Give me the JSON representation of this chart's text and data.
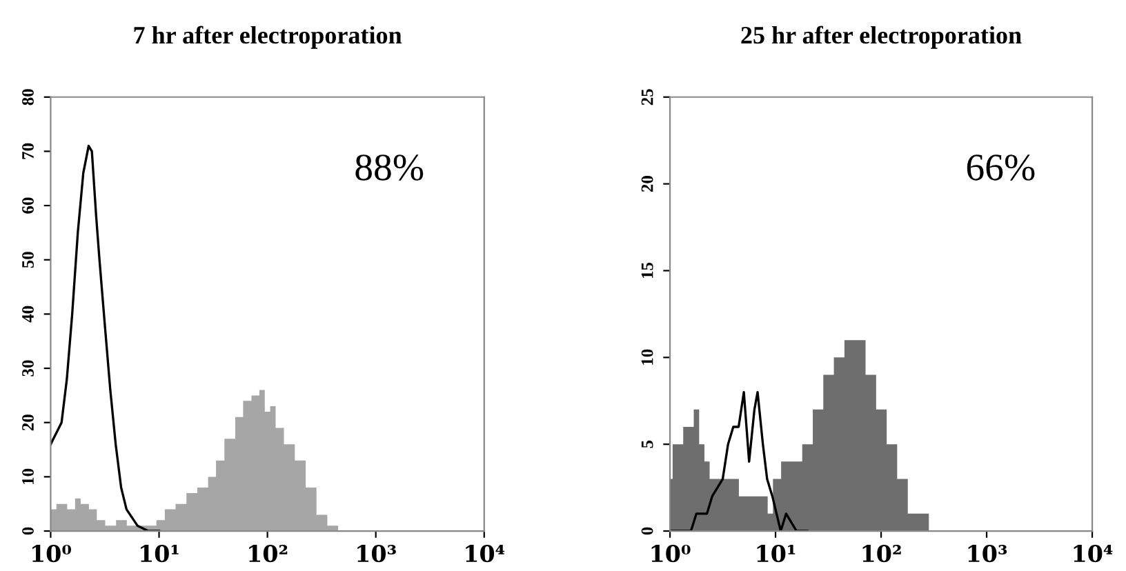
{
  "chart_data": [
    {
      "type": "area",
      "title": "7 hr after electroporation",
      "log": "x",
      "xlim": [
        1,
        10000
      ],
      "xticks": [
        {
          "value": 1,
          "label": "10⁰"
        },
        {
          "value": 10,
          "label": "10¹"
        },
        {
          "value": 100,
          "label": "10²"
        },
        {
          "value": 1000,
          "label": "10³"
        },
        {
          "value": 10000,
          "label": "10⁴"
        }
      ],
      "ylim": [
        0,
        80
      ],
      "yticks": [
        0,
        10,
        20,
        30,
        40,
        50,
        60,
        70,
        80
      ],
      "grid": false,
      "legend": false,
      "annotations": [
        "88%"
      ],
      "series": [
        {
          "color": "#a6a6a6",
          "x": [
            1,
            1.26,
            1.58,
            1.78,
            2.0,
            2.51,
            2.82,
            3.55,
            4.47,
            5.62,
            7.08,
            8.91,
            10,
            12.6,
            15.8,
            20,
            25.1,
            31.6,
            35.5,
            44.7,
            56.2,
            63.1,
            79.4,
            89.1,
            100,
            112,
            126,
            158,
            200,
            251,
            316,
            398,
            501
          ],
          "values": [
            4,
            5,
            4,
            6,
            5,
            4,
            2,
            1,
            2,
            1,
            1,
            1,
            2,
            4,
            5,
            7,
            8,
            10,
            13,
            17,
            21,
            24,
            25,
            26,
            22,
            23,
            19,
            16,
            13,
            8,
            3,
            1,
            0
          ]
        },
        {
          "type": "line",
          "color": "#000000",
          "x": [
            1,
            1.26,
            1.41,
            1.58,
            1.78,
            2.0,
            2.24,
            2.4,
            2.63,
            2.82,
            3.16,
            3.55,
            3.98,
            4.47,
            5.01,
            6.31,
            7.94,
            10
          ],
          "values": [
            16,
            20,
            28,
            40,
            55,
            66,
            71,
            70,
            58,
            50,
            38,
            26,
            16,
            8,
            4,
            1,
            0,
            0
          ]
        }
      ]
    },
    {
      "type": "area",
      "title": "25 hr after electroporation",
      "log": "x",
      "xlim": [
        1,
        10000
      ],
      "xticks": [
        {
          "value": 1,
          "label": "10⁰"
        },
        {
          "value": 10,
          "label": "10¹"
        },
        {
          "value": 100,
          "label": "10²"
        },
        {
          "value": 1000,
          "label": "10³"
        },
        {
          "value": 10000,
          "label": "10⁴"
        }
      ],
      "ylim": [
        0,
        25
      ],
      "yticks": [
        0,
        5,
        10,
        15,
        20,
        25
      ],
      "grid": false,
      "legend": false,
      "annotations": [
        "66%"
      ],
      "series": [
        {
          "color": "#6e6e6e",
          "x": [
            1,
            1.12,
            1.26,
            1.41,
            1.58,
            1.78,
            2.0,
            2.24,
            2.51,
            3.16,
            3.98,
            5.01,
            6.31,
            7.94,
            8.91,
            10,
            12.6,
            15.8,
            20,
            25.1,
            31.6,
            39.8,
            50.1,
            63.1,
            79.4,
            100,
            126,
            158,
            200,
            251,
            316
          ],
          "values": [
            3,
            5,
            5,
            6,
            6,
            7,
            5,
            4,
            3,
            3,
            3,
            2,
            2,
            2,
            1,
            3,
            4,
            4,
            5,
            7,
            9,
            10,
            11,
            11,
            9,
            7,
            5,
            3,
            1,
            1,
            0
          ]
        },
        {
          "type": "line",
          "color": "#000000",
          "x": [
            1,
            1.58,
            1.78,
            2.24,
            2.51,
            3.16,
            3.55,
            3.98,
            4.47,
            5.01,
            5.62,
            6.31,
            6.76,
            7.59,
            8.32,
            9.33,
            11.2,
            12.6,
            15.8,
            20
          ],
          "values": [
            0,
            0,
            1,
            1,
            2,
            3,
            5,
            6,
            6,
            8,
            4,
            7,
            8,
            5,
            3,
            2,
            0,
            1,
            0,
            0
          ]
        }
      ]
    }
  ]
}
